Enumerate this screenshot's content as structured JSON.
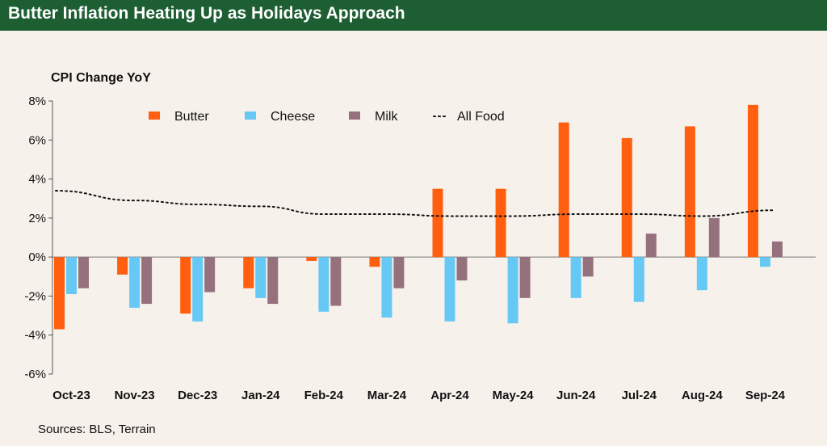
{
  "header": {
    "title": "Butter Inflation Heating Up as Holidays Approach",
    "background": "#1d5e33"
  },
  "source_text": "Sources: BLS, Terrain",
  "chart_data": {
    "type": "bar",
    "title": "Butter Inflation Heating Up as Holidays Approach",
    "ylabel": "CPI Change YoY",
    "xlabel": "",
    "ylim": [
      -6,
      8
    ],
    "yticks": [
      -6,
      -4,
      -2,
      0,
      2,
      4,
      6,
      8
    ],
    "ytick_labels": [
      "-6%",
      "-4%",
      "-2%",
      "0%",
      "2%",
      "4%",
      "6%",
      "8%"
    ],
    "grid": false,
    "legend_position": "top",
    "categories": [
      "Oct-23",
      "Nov-23",
      "Dec-23",
      "Jan-24",
      "Feb-24",
      "Mar-24",
      "Apr-24",
      "May-24",
      "Jun-24",
      "Jul-24",
      "Aug-24",
      "Sep-24"
    ],
    "series": [
      {
        "name": "Butter",
        "kind": "bar",
        "color": "#ff5f0f",
        "values": [
          -3.7,
          -0.9,
          -2.9,
          -1.6,
          -0.2,
          -0.5,
          3.5,
          3.5,
          6.9,
          6.1,
          6.7,
          7.8
        ]
      },
      {
        "name": "Cheese",
        "kind": "bar",
        "color": "#66c8f5",
        "values": [
          -1.9,
          -2.6,
          -3.3,
          -2.1,
          -2.8,
          -3.1,
          -3.3,
          -3.4,
          -2.1,
          -2.3,
          -1.7,
          -0.5
        ]
      },
      {
        "name": "Milk",
        "kind": "bar",
        "color": "#95717e",
        "values": [
          -1.6,
          -2.4,
          -1.8,
          -2.4,
          -2.5,
          -1.6,
          -1.2,
          -2.1,
          -1.0,
          1.2,
          2.0,
          0.8
        ]
      },
      {
        "name": "All Food",
        "kind": "line",
        "style": "dotted",
        "color": "#111111",
        "values": [
          3.4,
          2.9,
          2.7,
          2.6,
          2.2,
          2.2,
          2.1,
          2.1,
          2.2,
          2.2,
          2.1,
          2.4
        ]
      }
    ]
  }
}
